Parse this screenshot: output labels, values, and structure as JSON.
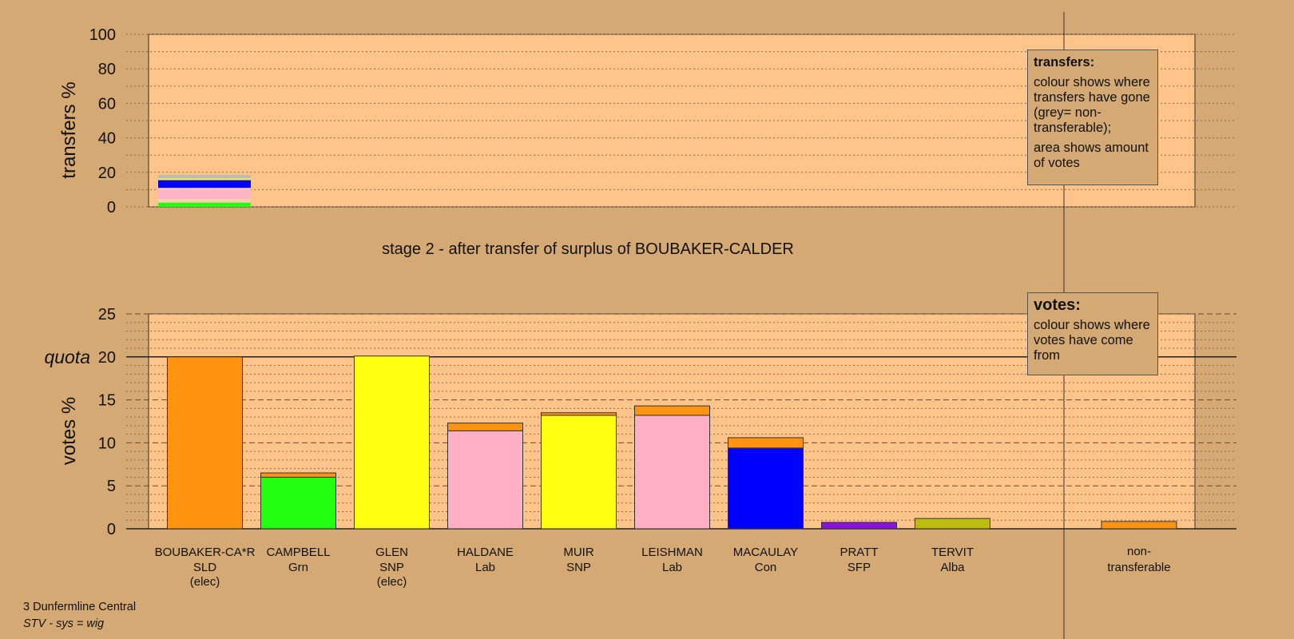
{
  "chart_data": [
    {
      "type": "bar",
      "name": "transfers",
      "ylabel": "transfers %",
      "ylim": [
        0,
        100
      ],
      "yticks": [
        0,
        20,
        40,
        60,
        80,
        100
      ],
      "grid": true,
      "bar_category": "BOUBAKER-CA*R",
      "segments": [
        {
          "from": 0,
          "to": 2.5,
          "color": "#22ff11"
        },
        {
          "from": 2.5,
          "to": 4.5,
          "color": "#ffd2b0"
        },
        {
          "from": 4.5,
          "to": 10,
          "color": "#ffb3c6"
        },
        {
          "from": 10,
          "to": 11,
          "color": "#ffd2b0"
        },
        {
          "from": 11,
          "to": 15.5,
          "color": "#0000ff"
        },
        {
          "from": 15.5,
          "to": 16.5,
          "color": "#ffff00"
        },
        {
          "from": 16.5,
          "to": 18.5,
          "color": "#bbbbbb"
        }
      ],
      "legend": {
        "title": "transfers:",
        "lines": [
          "colour shows where transfers have gone (grey= non-transferable);",
          "area shows amount of votes"
        ]
      }
    },
    {
      "type": "bar",
      "name": "votes",
      "ylabel": "votes %",
      "ylim": [
        0,
        25
      ],
      "yticks": [
        0,
        5,
        10,
        15,
        20,
        25
      ],
      "quota": 20,
      "quota_label": "quota",
      "grid": true,
      "categories": [
        {
          "name": "BOUBAKER-CA*R",
          "party": "SLD",
          "status": "(elec)",
          "segments": [
            {
              "value": 20.0,
              "color": "#ff9410"
            }
          ]
        },
        {
          "name": "CAMPBELL",
          "party": "Grn",
          "status": "",
          "segments": [
            {
              "value": 6.0,
              "color": "#22ff11"
            },
            {
              "value": 0.5,
              "color": "#ff9410"
            }
          ]
        },
        {
          "name": "GLEN",
          "party": "SNP",
          "status": "(elec)",
          "segments": [
            {
              "value": 20.1,
              "color": "#ffff11"
            }
          ]
        },
        {
          "name": "HALDANE",
          "party": "Lab",
          "status": "",
          "segments": [
            {
              "value": 11.4,
              "color": "#ffb0c4"
            },
            {
              "value": 0.9,
              "color": "#ff9410"
            }
          ]
        },
        {
          "name": "MUIR",
          "party": "SNP",
          "status": "",
          "segments": [
            {
              "value": 13.2,
              "color": "#ffff11"
            },
            {
              "value": 0.3,
              "color": "#ff9410"
            }
          ]
        },
        {
          "name": "LEISHMAN",
          "party": "Lab",
          "status": "",
          "segments": [
            {
              "value": 13.2,
              "color": "#ffb0c4"
            },
            {
              "value": 1.1,
              "color": "#ff9410"
            }
          ]
        },
        {
          "name": "MACAULAY",
          "party": "Con",
          "status": "",
          "segments": [
            {
              "value": 9.4,
              "color": "#0000ff"
            },
            {
              "value": 1.2,
              "color": "#ff9410"
            }
          ]
        },
        {
          "name": "PRATT",
          "party": "SFP",
          "status": "",
          "segments": [
            {
              "value": 0.75,
              "color": "#8811dd"
            }
          ]
        },
        {
          "name": "TERVIT",
          "party": "Alba",
          "status": "",
          "segments": [
            {
              "value": 1.2,
              "color": "#bbbb11"
            }
          ]
        }
      ],
      "nontransferable": {
        "line1": "non-",
        "line2": "transferable",
        "value": 0.85,
        "color": "#ff9410"
      },
      "legend": {
        "title": "votes:",
        "lines": [
          "colour shows where votes have come from"
        ]
      }
    }
  ],
  "stage_title": "stage 2 - after transfer of surplus of BOUBAKER-CALDER",
  "footer": {
    "constituency": "3 Dunfermline Central",
    "system": "STV - sys = wig"
  },
  "colors": {
    "background": "#d4a973",
    "plot_area": "#ffc48a",
    "shaded_area": "#d4a973"
  }
}
